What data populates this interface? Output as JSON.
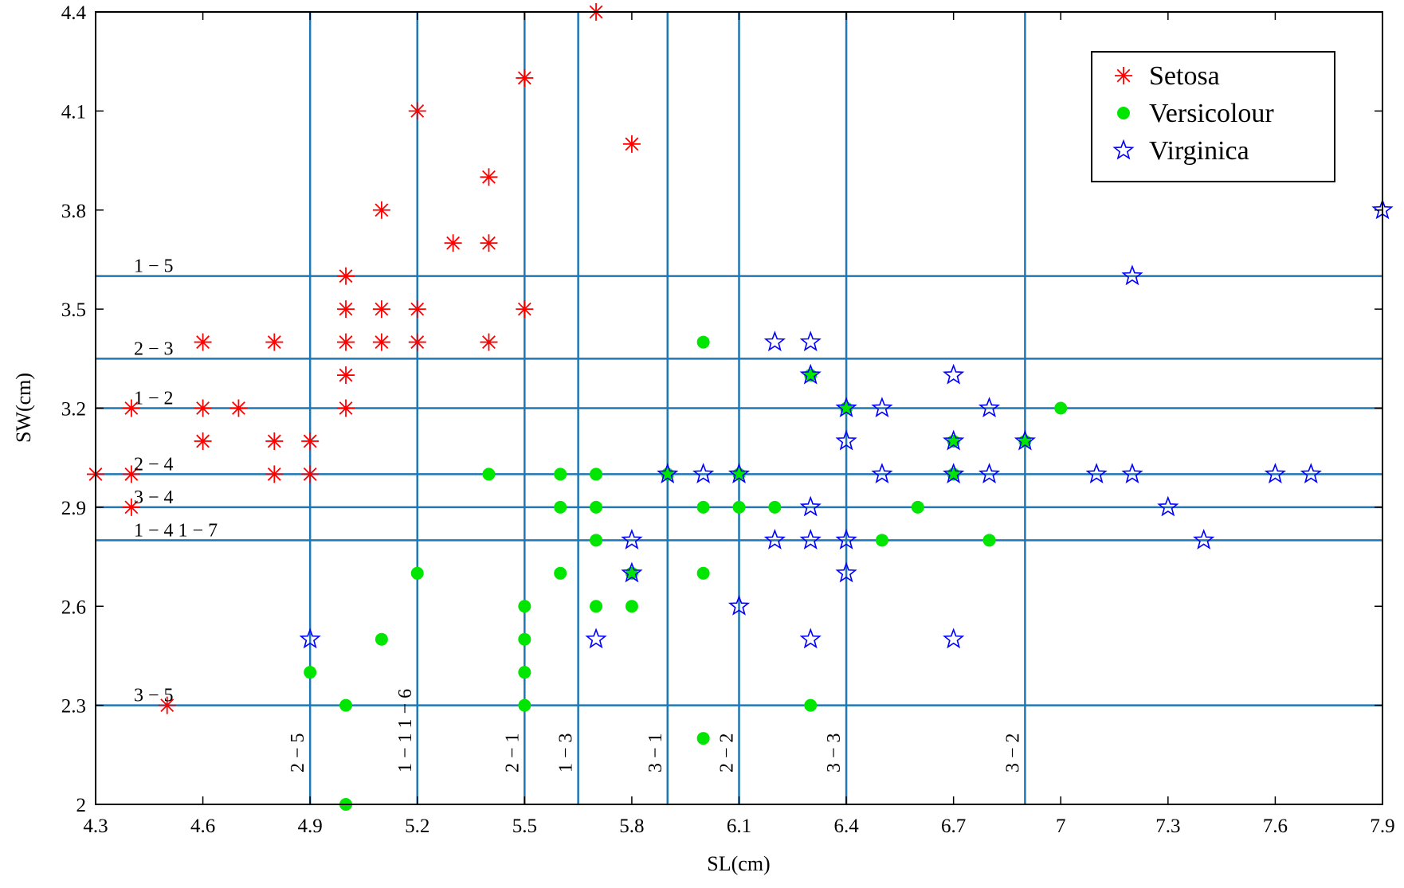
{
  "chart_data": {
    "type": "scatter",
    "xlabel": "SL(cm)",
    "ylabel": "SW(cm)",
    "xlim": [
      4.3,
      7.9
    ],
    "ylim": [
      2.0,
      4.4
    ],
    "xticks": [
      "4.3",
      "4.6",
      "4.9",
      "5.2",
      "5.5",
      "5.8",
      "6.1",
      "6.4",
      "6.7",
      "7",
      "7.3",
      "7.6",
      "7.9"
    ],
    "yticks": [
      "2",
      "2.3",
      "2.6",
      "2.9",
      "3.2",
      "3.5",
      "3.8",
      "4.1",
      "4.4"
    ],
    "grid": false,
    "legend_position": "top-right",
    "colors": {
      "setosa": "#ff0000",
      "versicolour": "#00e600",
      "virginica": "#0000ff",
      "cut_lines": "#1f77b4"
    },
    "series": [
      {
        "name": "Setosa",
        "marker": "asterisk",
        "points": [
          [
            4.3,
            3.0
          ],
          [
            4.4,
            3.2
          ],
          [
            4.4,
            3.0
          ],
          [
            4.4,
            2.9
          ],
          [
            4.5,
            2.3
          ],
          [
            4.6,
            3.4
          ],
          [
            4.6,
            3.2
          ],
          [
            4.6,
            3.1
          ],
          [
            4.7,
            3.2
          ],
          [
            4.8,
            3.4
          ],
          [
            4.8,
            3.1
          ],
          [
            4.8,
            3.0
          ],
          [
            4.9,
            3.1
          ],
          [
            4.9,
            3.0
          ],
          [
            5.0,
            3.6
          ],
          [
            5.0,
            3.5
          ],
          [
            5.0,
            3.4
          ],
          [
            5.0,
            3.3
          ],
          [
            5.0,
            3.2
          ],
          [
            5.1,
            3.8
          ],
          [
            5.1,
            3.5
          ],
          [
            5.1,
            3.4
          ],
          [
            5.2,
            4.1
          ],
          [
            5.2,
            3.5
          ],
          [
            5.2,
            3.4
          ],
          [
            5.3,
            3.7
          ],
          [
            5.4,
            3.9
          ],
          [
            5.4,
            3.7
          ],
          [
            5.4,
            3.4
          ],
          [
            5.5,
            4.2
          ],
          [
            5.5,
            3.5
          ],
          [
            5.7,
            4.4
          ],
          [
            5.8,
            4.0
          ]
        ]
      },
      {
        "name": "Versicolour",
        "marker": "dot",
        "points": [
          [
            4.9,
            2.4
          ],
          [
            5.0,
            2.3
          ],
          [
            5.0,
            2.0
          ],
          [
            5.1,
            2.5
          ],
          [
            5.2,
            2.7
          ],
          [
            5.4,
            3.0
          ],
          [
            5.5,
            2.6
          ],
          [
            5.5,
            2.5
          ],
          [
            5.5,
            2.4
          ],
          [
            5.5,
            2.3
          ],
          [
            5.6,
            3.0
          ],
          [
            5.6,
            2.9
          ],
          [
            5.6,
            2.7
          ],
          [
            5.7,
            3.0
          ],
          [
            5.7,
            2.9
          ],
          [
            5.7,
            2.8
          ],
          [
            5.7,
            2.6
          ],
          [
            5.8,
            2.7
          ],
          [
            5.8,
            2.6
          ],
          [
            5.9,
            3.0
          ],
          [
            6.0,
            3.4
          ],
          [
            6.0,
            2.9
          ],
          [
            6.0,
            2.7
          ],
          [
            6.0,
            2.2
          ],
          [
            6.1,
            3.0
          ],
          [
            6.1,
            2.9
          ],
          [
            6.2,
            2.9
          ],
          [
            6.3,
            3.3
          ],
          [
            6.3,
            2.3
          ],
          [
            6.4,
            3.2
          ],
          [
            6.5,
            2.8
          ],
          [
            6.6,
            2.9
          ],
          [
            6.7,
            3.1
          ],
          [
            6.7,
            3.0
          ],
          [
            6.8,
            2.8
          ],
          [
            6.9,
            3.1
          ],
          [
            7.0,
            3.2
          ]
        ]
      },
      {
        "name": "Virginica",
        "marker": "star",
        "points": [
          [
            4.9,
            2.5
          ],
          [
            5.7,
            2.5
          ],
          [
            5.8,
            2.8
          ],
          [
            5.8,
            2.7
          ],
          [
            5.9,
            3.0
          ],
          [
            6.0,
            3.0
          ],
          [
            6.1,
            3.0
          ],
          [
            6.1,
            2.6
          ],
          [
            6.2,
            3.4
          ],
          [
            6.2,
            2.8
          ],
          [
            6.3,
            3.4
          ],
          [
            6.3,
            3.3
          ],
          [
            6.3,
            2.9
          ],
          [
            6.3,
            2.8
          ],
          [
            6.3,
            2.5
          ],
          [
            6.4,
            3.2
          ],
          [
            6.4,
            3.1
          ],
          [
            6.4,
            2.8
          ],
          [
            6.4,
            2.7
          ],
          [
            6.5,
            3.2
          ],
          [
            6.5,
            3.0
          ],
          [
            6.7,
            3.3
          ],
          [
            6.7,
            3.1
          ],
          [
            6.7,
            3.0
          ],
          [
            6.7,
            2.5
          ],
          [
            6.8,
            3.2
          ],
          [
            6.8,
            3.0
          ],
          [
            6.9,
            3.1
          ],
          [
            7.1,
            3.0
          ],
          [
            7.2,
            3.6
          ],
          [
            7.2,
            3.0
          ],
          [
            7.3,
            2.9
          ],
          [
            7.4,
            2.8
          ],
          [
            7.6,
            3.0
          ],
          [
            7.7,
            3.0
          ],
          [
            7.9,
            3.8
          ]
        ]
      }
    ],
    "vertical_cuts": [
      {
        "x": 4.9,
        "label": "2 − 5"
      },
      {
        "x": 5.2,
        "label": "1 − 1   1 − 6"
      },
      {
        "x": 5.5,
        "label": "2 − 1"
      },
      {
        "x": 5.65,
        "label": "1 − 3"
      },
      {
        "x": 5.9,
        "label": "3 − 1"
      },
      {
        "x": 6.1,
        "label": "2 − 2"
      },
      {
        "x": 6.4,
        "label": "3 − 3"
      },
      {
        "x": 6.9,
        "label": "3 − 2"
      }
    ],
    "horizontal_cuts": [
      {
        "y": 3.6,
        "label": "1 − 5"
      },
      {
        "y": 3.35,
        "label": "2 − 3"
      },
      {
        "y": 3.2,
        "label": "1 − 2"
      },
      {
        "y": 3.0,
        "label": "2 − 4"
      },
      {
        "y": 2.9,
        "label": "3 − 4"
      },
      {
        "y": 2.8,
        "label": "1 − 4   1 − 7"
      },
      {
        "y": 2.3,
        "label": "3 − 5"
      }
    ]
  }
}
